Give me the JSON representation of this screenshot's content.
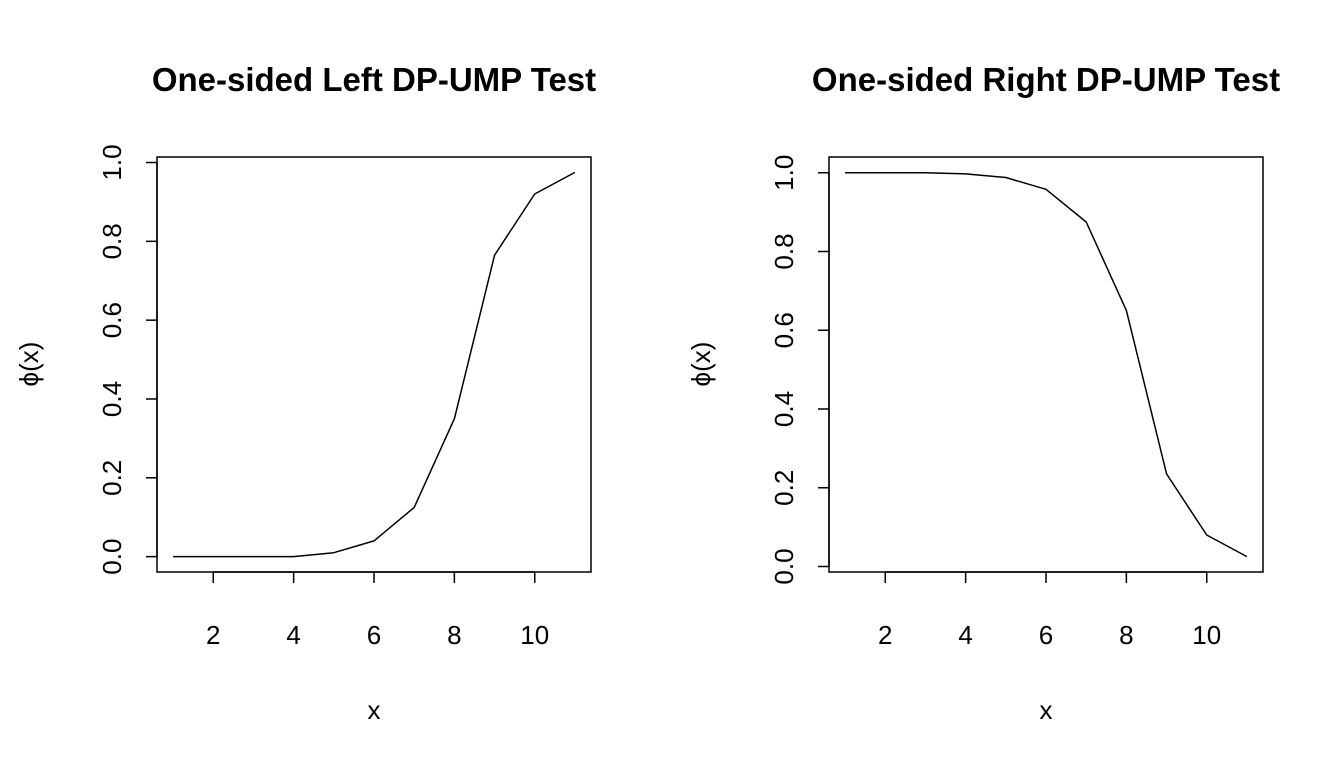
{
  "chart_data": [
    {
      "type": "line",
      "title": "One-sided Left DP-UMP Test",
      "xlabel": "x",
      "ylabel": "ϕ(x)",
      "x": [
        1,
        2,
        3,
        4,
        5,
        6,
        7,
        8,
        9,
        10,
        11
      ],
      "y": [
        0.0,
        0.0,
        0.0,
        0.0,
        0.01,
        0.04,
        0.125,
        0.35,
        0.765,
        0.92,
        0.975
      ],
      "xlim": [
        0.6,
        11.4
      ],
      "ylim": [
        -0.039,
        1.014
      ],
      "xticks": [
        2,
        4,
        6,
        8,
        10
      ],
      "xtick_labels": [
        "2",
        "4",
        "6",
        "8",
        "10"
      ],
      "yticks": [
        0.0,
        0.2,
        0.4,
        0.6,
        0.8,
        1.0
      ],
      "ytick_labels": [
        "0.0",
        "0.2",
        "0.4",
        "0.6",
        "0.8",
        "1.0"
      ],
      "grid": false,
      "color": "#000000"
    },
    {
      "type": "line",
      "title": "One-sided Right DP-UMP Test",
      "xlabel": "x",
      "ylabel": "ϕ(x)",
      "x": [
        1,
        2,
        3,
        4,
        5,
        6,
        7,
        8,
        9,
        10,
        11
      ],
      "y": [
        1.0,
        1.0,
        1.0,
        0.997,
        0.988,
        0.958,
        0.875,
        0.65,
        0.235,
        0.08,
        0.025
      ],
      "xlim": [
        0.6,
        11.4
      ],
      "ylim": [
        -0.014,
        1.04
      ],
      "xticks": [
        2,
        4,
        6,
        8,
        10
      ],
      "xtick_labels": [
        "2",
        "4",
        "6",
        "8",
        "10"
      ],
      "yticks": [
        0.0,
        0.2,
        0.4,
        0.6,
        0.8,
        1.0
      ],
      "ytick_labels": [
        "0.0",
        "0.2",
        "0.4",
        "0.6",
        "0.8",
        "1.0"
      ],
      "grid": false,
      "color": "#000000"
    }
  ]
}
